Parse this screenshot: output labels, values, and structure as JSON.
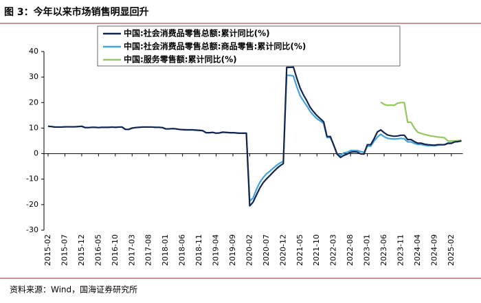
{
  "chart_data": {
    "type": "line",
    "title": "图 3：今年以来市场销售明显回升",
    "source": "资料来源：Wind，国海证券研究所",
    "categories": [
      "2015-02",
      null,
      null,
      null,
      null,
      "2015-07",
      null,
      null,
      null,
      null,
      "2015-12",
      null,
      null,
      null,
      null,
      "2016-05",
      null,
      null,
      null,
      null,
      "2016-10",
      null,
      null,
      null,
      null,
      "2017-03",
      null,
      null,
      null,
      null,
      "2017-08",
      null,
      null,
      null,
      null,
      "2018-01",
      null,
      null,
      null,
      null,
      "2018-06",
      null,
      null,
      null,
      null,
      "2018-11",
      null,
      null,
      null,
      null,
      "2019-04",
      null,
      null,
      null,
      null,
      "2019-09",
      null,
      null,
      null,
      null,
      "2020-02",
      null,
      null,
      null,
      null,
      "2020-07",
      null,
      null,
      null,
      null,
      "2020-12",
      null,
      null,
      null,
      null,
      "2021-05",
      null,
      null,
      null,
      null,
      "2021-10",
      null,
      null,
      null,
      null,
      "2022-03",
      null,
      null,
      null,
      null,
      "2022-08",
      null,
      null,
      null,
      null,
      "2023-01",
      null,
      null,
      null,
      null,
      "2023-06",
      null,
      null,
      null,
      null,
      "2023-11",
      null,
      null,
      null,
      null,
      "2024-04",
      null,
      null,
      null,
      null,
      "2024-09",
      null,
      null,
      null,
      null,
      "2025-02",
      null,
      null,
      null
    ],
    "series": [
      {
        "name": "中国:社会消费品零售总额:累计同比(%)",
        "color": "#14244a",
        "values": [
          10.7,
          10.6,
          10.4,
          10.4,
          10.4,
          10.5,
          10.5,
          10.5,
          10.5,
          10.6,
          10.7,
          10.2,
          10.2,
          10.3,
          10.3,
          10.2,
          10.3,
          10.3,
          10.3,
          10.4,
          10.3,
          10.4,
          10.4,
          9.5,
          9.5,
          10.0,
          10.2,
          10.3,
          10.4,
          10.4,
          10.4,
          10.4,
          10.3,
          10.3,
          10.2,
          9.7,
          9.7,
          9.8,
          9.7,
          9.5,
          9.4,
          9.3,
          9.3,
          9.3,
          9.2,
          9.1,
          9.0,
          8.2,
          8.2,
          8.3,
          8.0,
          8.1,
          8.4,
          8.3,
          8.2,
          8.2,
          8.1,
          8.0,
          8.0,
          8.0,
          -20.5,
          -19.0,
          -16.2,
          -13.5,
          -11.4,
          -9.9,
          -8.6,
          -7.2,
          -5.9,
          -4.8,
          -3.9,
          33.8,
          33.8,
          33.9,
          29.6,
          25.7,
          23.0,
          20.7,
          18.1,
          16.4,
          14.9,
          13.7,
          12.5,
          6.7,
          6.7,
          3.3,
          -0.2,
          -1.5,
          -0.7,
          -0.2,
          0.5,
          0.7,
          0.6,
          -0.1,
          -0.2,
          3.5,
          3.5,
          5.8,
          8.5,
          9.3,
          8.2,
          7.3,
          7.0,
          6.8,
          6.9,
          7.2,
          7.2,
          5.5,
          5.5,
          4.7,
          4.1,
          4.1,
          3.7,
          3.5,
          3.4,
          3.3,
          3.5,
          3.5,
          3.5,
          4.0,
          4.0,
          4.6,
          4.7,
          5.0
        ]
      },
      {
        "name": "中国:社会消费品零售总额:商品零售:累计同比(%)",
        "color": "#3fa3e0",
        "values": [
          10.7,
          10.6,
          10.4,
          10.4,
          10.4,
          10.5,
          10.5,
          10.5,
          10.5,
          10.6,
          10.7,
          10.2,
          10.2,
          10.3,
          10.3,
          10.2,
          10.3,
          10.3,
          10.3,
          10.4,
          10.3,
          10.4,
          10.4,
          9.5,
          9.5,
          10.0,
          10.2,
          10.3,
          10.4,
          10.4,
          10.4,
          10.4,
          10.3,
          10.3,
          10.2,
          9.7,
          9.7,
          9.8,
          9.7,
          9.5,
          9.4,
          9.3,
          9.3,
          9.3,
          9.2,
          9.1,
          9.0,
          8.2,
          8.2,
          8.3,
          8.0,
          8.1,
          8.4,
          8.3,
          8.2,
          8.2,
          8.1,
          8.0,
          8.0,
          8.0,
          -18.6,
          -17.4,
          -14.0,
          -11.3,
          -9.4,
          -7.9,
          -6.9,
          -5.7,
          -4.6,
          -3.7,
          -3.0,
          30.7,
          30.7,
          30.4,
          26.2,
          22.7,
          20.6,
          18.7,
          16.5,
          15.0,
          13.7,
          12.8,
          11.8,
          6.3,
          6.3,
          3.4,
          -0.1,
          -0.7,
          0.3,
          0.5,
          1.2,
          1.2,
          1.2,
          0.8,
          0.5,
          2.9,
          2.9,
          4.9,
          6.5,
          7.6,
          6.6,
          6.0,
          5.8,
          5.7,
          5.8,
          6.0,
          5.8,
          4.6,
          4.6,
          4.0,
          3.6,
          3.6,
          3.3,
          3.1,
          3.1,
          3.1,
          3.3,
          3.4,
          3.5,
          4.2,
          4.2,
          4.6,
          4.8,
          5.0
        ]
      },
      {
        "name": "中国:服务零售额:累计同比(%)",
        "color": "#92c85a",
        "values": [
          null,
          null,
          null,
          null,
          null,
          null,
          null,
          null,
          null,
          null,
          null,
          null,
          null,
          null,
          null,
          null,
          null,
          null,
          null,
          null,
          null,
          null,
          null,
          null,
          null,
          null,
          null,
          null,
          null,
          null,
          null,
          null,
          null,
          null,
          null,
          null,
          null,
          null,
          null,
          null,
          null,
          null,
          null,
          null,
          null,
          null,
          null,
          null,
          null,
          null,
          null,
          null,
          null,
          null,
          null,
          null,
          null,
          null,
          null,
          null,
          null,
          null,
          null,
          null,
          null,
          null,
          null,
          null,
          null,
          null,
          null,
          null,
          null,
          null,
          null,
          null,
          null,
          null,
          null,
          null,
          null,
          null,
          null,
          null,
          null,
          null,
          null,
          null,
          null,
          null,
          null,
          null,
          null,
          null,
          null,
          null,
          null,
          null,
          null,
          20.2,
          19.3,
          18.9,
          19.0,
          18.9,
          19.8,
          20.0,
          20.0,
          12.3,
          12.3,
          10.0,
          8.4,
          7.9,
          7.5,
          7.2,
          6.9,
          6.7,
          6.5,
          6.4,
          6.2,
          4.9,
          4.9,
          5.0,
          5.1,
          5.2
        ]
      }
    ],
    "ylim": [
      -30,
      40
    ],
    "yticks": [
      -30,
      -20,
      -10,
      0,
      10,
      20,
      30,
      40
    ],
    "legend": "top"
  }
}
